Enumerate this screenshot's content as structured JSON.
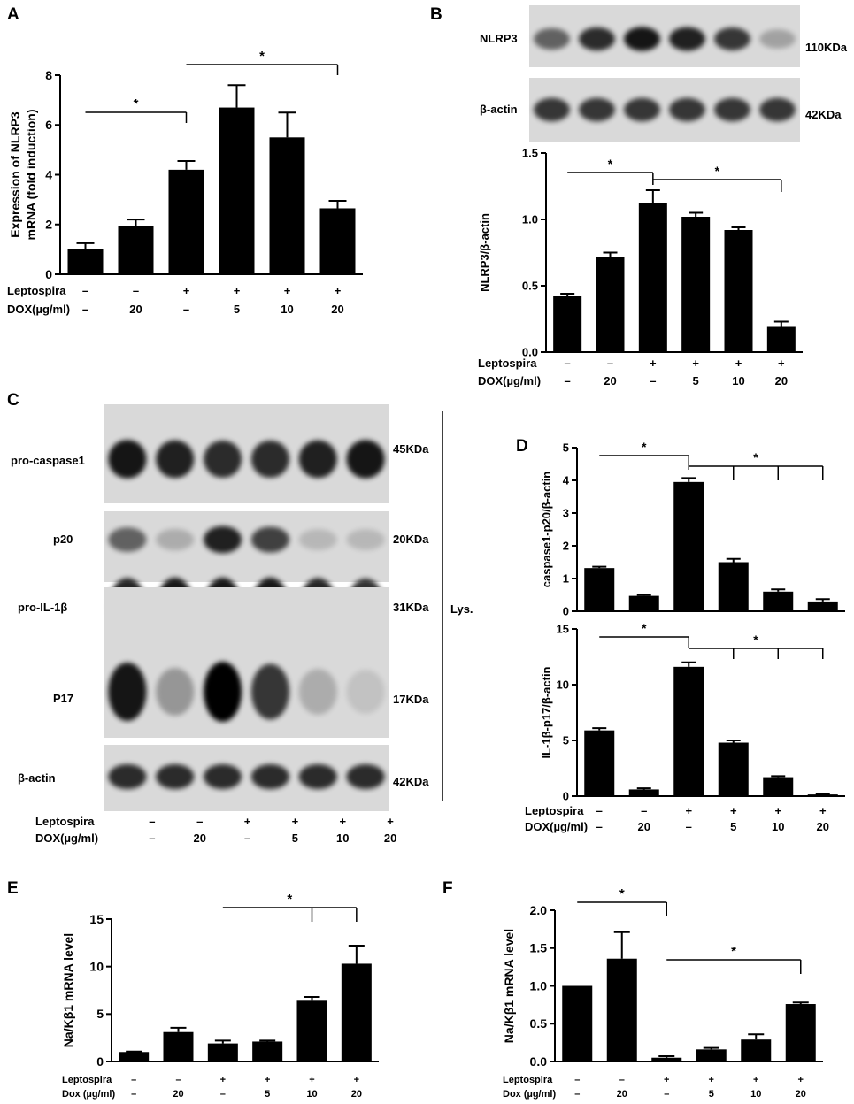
{
  "figure": {
    "panel_labels": [
      "A",
      "B",
      "C",
      "D",
      "E",
      "F"
    ]
  },
  "treatments": {
    "leptospira_label": "Leptospira",
    "dox_label": "DOX(µg/ml)",
    "dox_label_small": "Dox (µg/ml)",
    "leptospira": [
      "–",
      "–",
      "+",
      "+",
      "+",
      "+"
    ],
    "dox": [
      "–",
      "20",
      "–",
      "5",
      "10",
      "20"
    ]
  },
  "blot_b": {
    "rows": [
      {
        "label": "NLRP3",
        "size": "110KDa"
      },
      {
        "label": "β-actin",
        "size": "42KDa"
      }
    ]
  },
  "blot_c": {
    "rows": [
      {
        "label": "pro-caspase1",
        "size": "45KDa"
      },
      {
        "label": "p20",
        "size": "20KDa"
      },
      {
        "label": "pro-IL-1β",
        "size": "31KDa"
      },
      {
        "label": "P17",
        "size": "17KDa"
      },
      {
        "label": "β-actin",
        "size": "42KDa"
      }
    ],
    "fraction_label": "Lys."
  },
  "chart_data": [
    {
      "panel": "A",
      "type": "bar",
      "categories": [
        "1",
        "2",
        "3",
        "4",
        "5",
        "6"
      ],
      "values": [
        1.0,
        1.95,
        4.2,
        6.7,
        5.5,
        2.65
      ],
      "errors": [
        0.25,
        0.25,
        0.35,
        0.9,
        1.0,
        0.3
      ],
      "ylabel": "Expression of NLRP3 mRNA (fold induction)",
      "ylim": [
        0,
        8
      ],
      "yticks": [
        "0",
        "2",
        "4",
        "6",
        "8"
      ],
      "significance": [
        {
          "label": "*",
          "from": 0,
          "to": [
            2
          ]
        },
        {
          "label": "*",
          "from": 2,
          "to": [
            5
          ]
        }
      ]
    },
    {
      "panel": "B",
      "type": "bar",
      "categories": [
        "1",
        "2",
        "3",
        "4",
        "5",
        "6"
      ],
      "values": [
        0.42,
        0.72,
        1.12,
        1.02,
        0.92,
        0.19
      ],
      "errors": [
        0.02,
        0.03,
        0.1,
        0.03,
        0.02,
        0.04
      ],
      "ylabel": "NLRP3/β-actin",
      "ylim": [
        0,
        1.5
      ],
      "yticks": [
        "0.0",
        "0.5",
        "1.0",
        "1.5"
      ],
      "significance": [
        {
          "label": "*",
          "from": 0,
          "to": [
            2
          ]
        },
        {
          "label": "*",
          "from": 2,
          "to": [
            5
          ]
        }
      ]
    },
    {
      "panel": "D-top",
      "type": "bar",
      "categories": [
        "1",
        "2",
        "3",
        "4",
        "5",
        "6"
      ],
      "values": [
        1.32,
        0.47,
        3.95,
        1.5,
        0.6,
        0.3
      ],
      "errors": [
        0.04,
        0.03,
        0.12,
        0.1,
        0.07,
        0.07
      ],
      "ylabel": "caspase1-p20/β-actin",
      "ylim": [
        0,
        5
      ],
      "yticks": [
        "0",
        "1",
        "2",
        "3",
        "4",
        "5"
      ],
      "significance": [
        {
          "label": "*",
          "from": 0,
          "to": [
            2
          ]
        },
        {
          "label": "*",
          "from": 2,
          "to": [
            3,
            4,
            5
          ]
        }
      ]
    },
    {
      "panel": "D-bottom",
      "type": "bar",
      "categories": [
        "1",
        "2",
        "3",
        "4",
        "5",
        "6"
      ],
      "values": [
        5.9,
        0.6,
        11.6,
        4.8,
        1.7,
        0.15
      ],
      "errors": [
        0.2,
        0.1,
        0.4,
        0.2,
        0.1,
        0.05
      ],
      "ylabel": "IL-1β-p17/β-actin",
      "ylim": [
        0,
        15
      ],
      "yticks": [
        "0",
        "5",
        "10",
        "15"
      ],
      "significance": [
        {
          "label": "*",
          "from": 0,
          "to": [
            2
          ]
        },
        {
          "label": "*",
          "from": 2,
          "to": [
            3,
            4,
            5
          ]
        }
      ]
    },
    {
      "panel": "E",
      "type": "bar",
      "categories": [
        "1",
        "2",
        "3",
        "4",
        "5",
        "6"
      ],
      "values": [
        1.0,
        3.1,
        1.9,
        2.1,
        6.4,
        10.3
      ],
      "errors": [
        0.05,
        0.45,
        0.3,
        0.1,
        0.4,
        1.9
      ],
      "ylabel": "Na/Kβ1 mRNA level",
      "ylim": [
        0,
        15
      ],
      "yticks": [
        "0",
        "5",
        "10",
        "15"
      ],
      "significance": [
        {
          "label": "*",
          "from": 2,
          "to": [
            4,
            5
          ]
        }
      ]
    },
    {
      "panel": "F",
      "type": "bar",
      "categories": [
        "1",
        "2",
        "3",
        "4",
        "5",
        "6"
      ],
      "values": [
        1.0,
        1.36,
        0.05,
        0.16,
        0.29,
        0.76
      ],
      "errors": [
        0.0,
        0.35,
        0.02,
        0.02,
        0.07,
        0.02
      ],
      "ylabel": "Na/Kβ1 mRNA level",
      "ylim": [
        0,
        2.0
      ],
      "yticks": [
        "0.0",
        "0.5",
        "1.0",
        "1.5",
        "2.0"
      ],
      "significance": [
        {
          "label": "*",
          "from": 0,
          "to": [
            2
          ]
        },
        {
          "label": "*",
          "from": 2,
          "to": [
            5
          ]
        }
      ]
    }
  ]
}
